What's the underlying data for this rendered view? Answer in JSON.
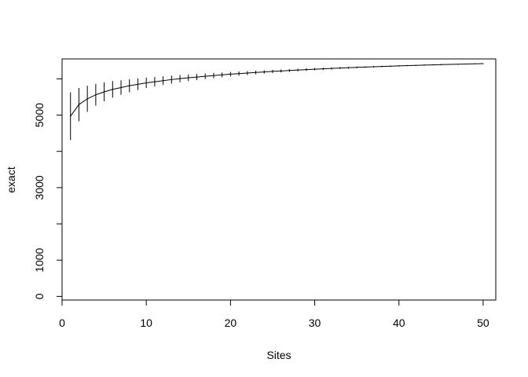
{
  "chart_data": {
    "type": "line",
    "title": "",
    "xlabel": "Sites",
    "ylabel": "exact",
    "xlim": [
      0,
      51.5
    ],
    "ylim": [
      -100,
      6550
    ],
    "x_ticks": [
      0,
      10,
      20,
      30,
      40,
      50
    ],
    "y_ticks": [
      0,
      1000,
      2000,
      3000,
      4000,
      5000,
      6000
    ],
    "y_tick_labels": [
      "0",
      "1000",
      "",
      "3000",
      "",
      "5000",
      ""
    ],
    "grid": false,
    "legend": "none",
    "series": [
      {
        "x": [
          1,
          2,
          3,
          4,
          5,
          6,
          7,
          8,
          9,
          10,
          11,
          12,
          13,
          14,
          15,
          16,
          17,
          18,
          19,
          20,
          21,
          22,
          23,
          24,
          25,
          26,
          27,
          28,
          29,
          30,
          31,
          32,
          33,
          34,
          35,
          36,
          37,
          38,
          39,
          40,
          41,
          42,
          43,
          44,
          45,
          46,
          47,
          48,
          49,
          50
        ],
        "values": [
          4970,
          5290,
          5450,
          5560,
          5640,
          5710,
          5760,
          5810,
          5850,
          5890,
          5920,
          5950,
          5980,
          6005,
          6030,
          6050,
          6070,
          6090,
          6110,
          6130,
          6145,
          6160,
          6175,
          6190,
          6205,
          6218,
          6230,
          6243,
          6255,
          6266,
          6277,
          6287,
          6297,
          6307,
          6316,
          6325,
          6334,
          6342,
          6350,
          6358,
          6365,
          6372,
          6379,
          6386,
          6392,
          6398,
          6404,
          6410,
          6415,
          6420
        ],
        "sd": [
          330,
          230,
          180,
          150,
          130,
          115,
          100,
          90,
          80,
          72,
          65,
          60,
          55,
          50,
          46,
          42,
          39,
          36,
          33,
          31,
          29,
          27,
          25,
          23,
          21,
          20,
          19,
          18,
          17,
          16,
          15,
          14,
          13,
          12,
          11,
          10,
          10,
          9,
          9,
          8,
          8,
          7,
          7,
          6,
          6,
          5,
          5,
          4,
          3,
          0
        ]
      }
    ]
  }
}
